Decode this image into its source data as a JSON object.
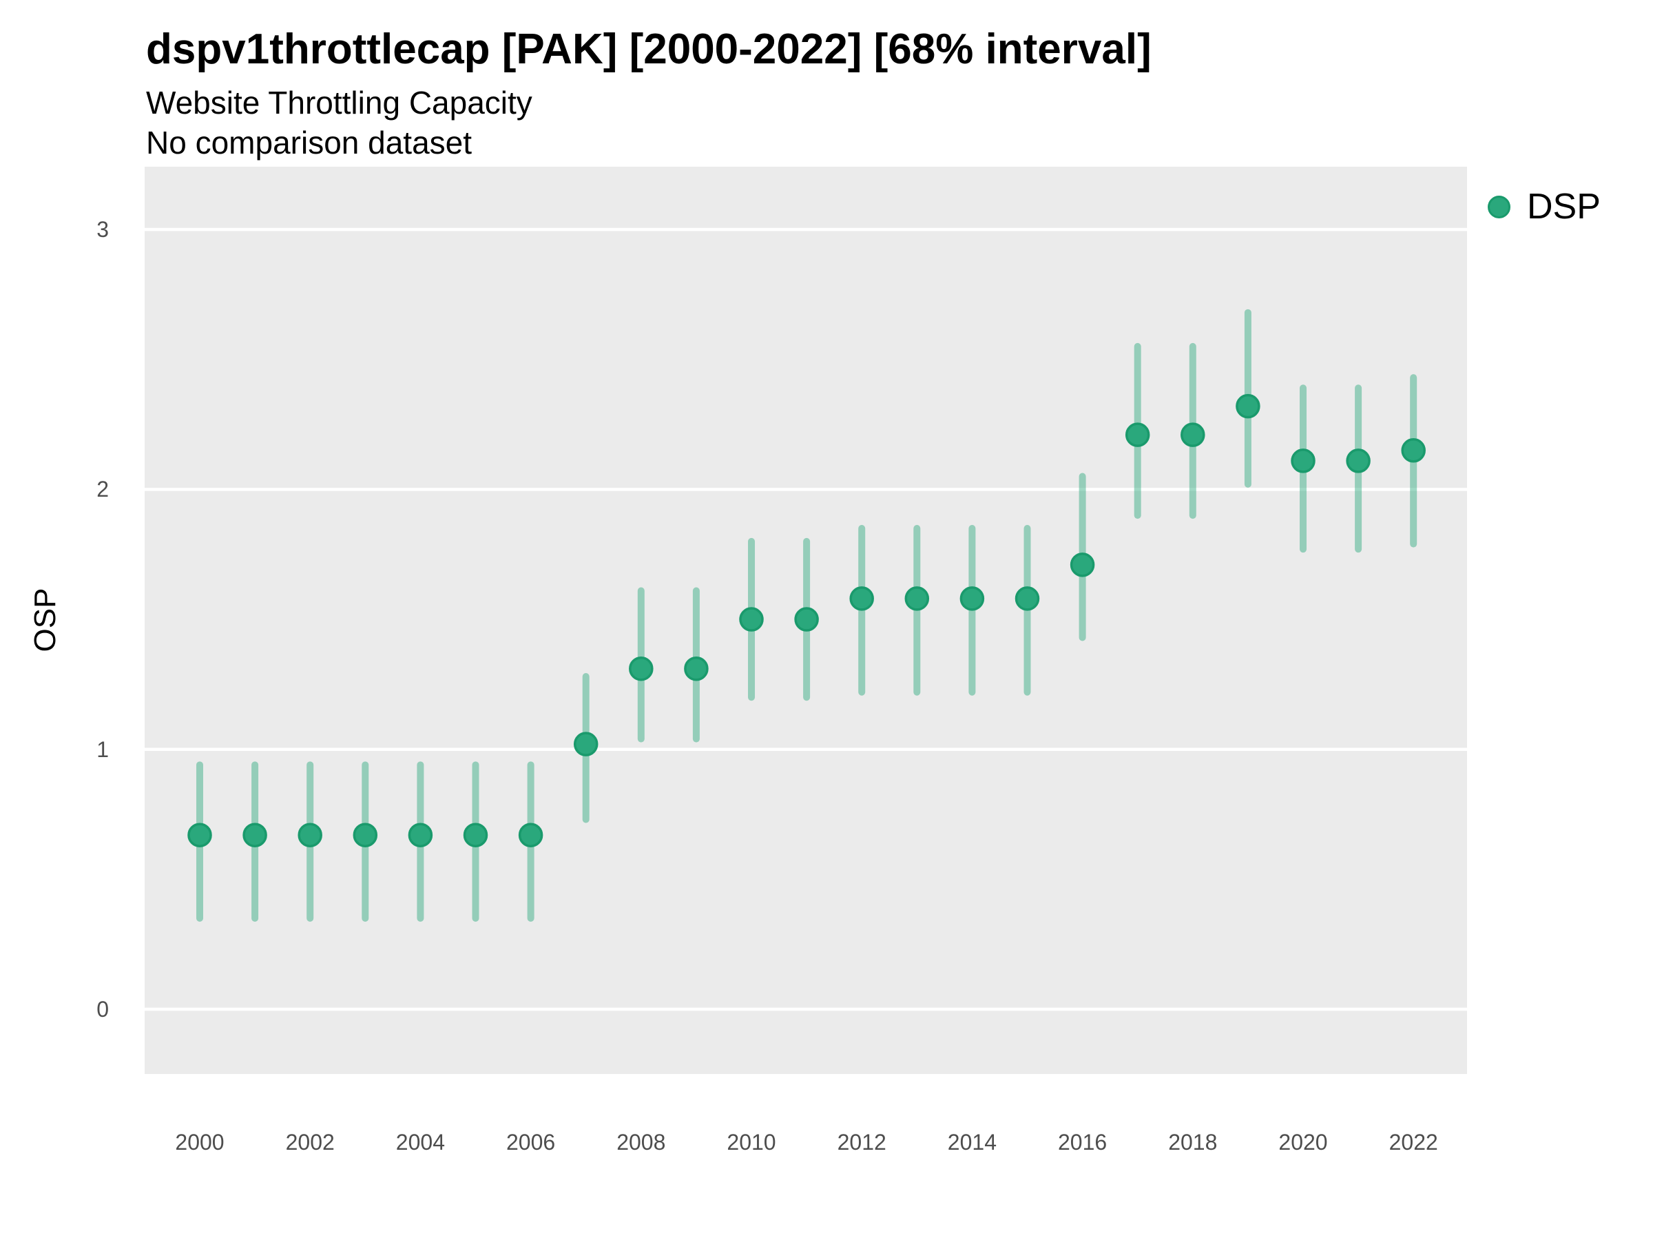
{
  "header": {
    "title": "dspv1throttlecap [PAK] [2000-2022] [68% interval]",
    "subtitle": "Website Throttling Capacity",
    "note": "No comparison dataset"
  },
  "legend": {
    "label": "DSP",
    "position": "right"
  },
  "axes": {
    "y_title": "OSP",
    "y_ticks": [
      0,
      1,
      2,
      3
    ],
    "x_ticks": [
      2000,
      2002,
      2004,
      2006,
      2008,
      2010,
      2012,
      2014,
      2016,
      2018,
      2020,
      2022
    ]
  },
  "colors": {
    "panel_background": "#ebebeb",
    "gridline": "#ffffff",
    "point_fill": "#2aa87c",
    "point_stroke": "#1a9a6c",
    "interval_line": "rgba(42,168,124,0.45)",
    "tick_text": "#4d4d4d",
    "title_text": "#000000"
  },
  "chart_data": {
    "type": "scatter",
    "subtype": "pointrange",
    "title": "dspv1throttlecap [PAK] [2000-2022] [68% interval]",
    "subtitle": "Website Throttling Capacity",
    "note": "No comparison dataset",
    "xlabel": "",
    "ylabel": "OSP",
    "interval": "68%",
    "xlim": [
      1999,
      2023
    ],
    "ylim": [
      -0.25,
      3.25
    ],
    "grid": "major-y-only",
    "legend_position": "right",
    "series": [
      {
        "name": "DSP",
        "points": [
          {
            "year": 2000,
            "value": 0.67,
            "lo": 0.35,
            "hi": 0.94
          },
          {
            "year": 2001,
            "value": 0.67,
            "lo": 0.35,
            "hi": 0.94
          },
          {
            "year": 2002,
            "value": 0.67,
            "lo": 0.35,
            "hi": 0.94
          },
          {
            "year": 2003,
            "value": 0.67,
            "lo": 0.35,
            "hi": 0.94
          },
          {
            "year": 2004,
            "value": 0.67,
            "lo": 0.35,
            "hi": 0.94
          },
          {
            "year": 2005,
            "value": 0.67,
            "lo": 0.35,
            "hi": 0.94
          },
          {
            "year": 2006,
            "value": 0.67,
            "lo": 0.35,
            "hi": 0.94
          },
          {
            "year": 2007,
            "value": 1.02,
            "lo": 0.73,
            "hi": 1.28
          },
          {
            "year": 2008,
            "value": 1.31,
            "lo": 1.04,
            "hi": 1.61
          },
          {
            "year": 2009,
            "value": 1.31,
            "lo": 1.04,
            "hi": 1.61
          },
          {
            "year": 2010,
            "value": 1.5,
            "lo": 1.2,
            "hi": 1.8
          },
          {
            "year": 2011,
            "value": 1.5,
            "lo": 1.2,
            "hi": 1.8
          },
          {
            "year": 2012,
            "value": 1.58,
            "lo": 1.22,
            "hi": 1.85
          },
          {
            "year": 2013,
            "value": 1.58,
            "lo": 1.22,
            "hi": 1.85
          },
          {
            "year": 2014,
            "value": 1.58,
            "lo": 1.22,
            "hi": 1.85
          },
          {
            "year": 2015,
            "value": 1.58,
            "lo": 1.22,
            "hi": 1.85
          },
          {
            "year": 2016,
            "value": 1.71,
            "lo": 1.43,
            "hi": 2.05
          },
          {
            "year": 2017,
            "value": 2.21,
            "lo": 1.9,
            "hi": 2.55
          },
          {
            "year": 2018,
            "value": 2.21,
            "lo": 1.9,
            "hi": 2.55
          },
          {
            "year": 2019,
            "value": 2.32,
            "lo": 2.02,
            "hi": 2.68
          },
          {
            "year": 2020,
            "value": 2.11,
            "lo": 1.77,
            "hi": 2.39
          },
          {
            "year": 2021,
            "value": 2.11,
            "lo": 1.77,
            "hi": 2.39
          },
          {
            "year": 2022,
            "value": 2.15,
            "lo": 1.79,
            "hi": 2.43
          }
        ]
      }
    ]
  }
}
